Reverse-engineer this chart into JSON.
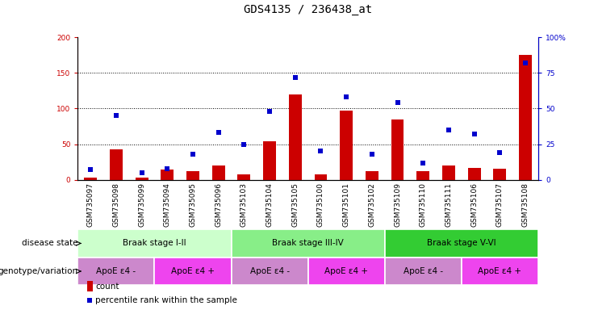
{
  "title": "GDS4135 / 236438_at",
  "samples": [
    "GSM735097",
    "GSM735098",
    "GSM735099",
    "GSM735094",
    "GSM735095",
    "GSM735096",
    "GSM735103",
    "GSM735104",
    "GSM735105",
    "GSM735100",
    "GSM735101",
    "GSM735102",
    "GSM735109",
    "GSM735110",
    "GSM735111",
    "GSM735106",
    "GSM735107",
    "GSM735108"
  ],
  "counts": [
    3,
    43,
    3,
    14,
    12,
    20,
    8,
    54,
    120,
    8,
    97,
    12,
    85,
    12,
    20,
    17,
    15,
    175
  ],
  "percentiles": [
    7,
    45,
    5,
    8,
    18,
    33,
    25,
    48,
    72,
    20,
    58,
    18,
    54,
    12,
    35,
    32,
    19,
    82
  ],
  "ylim_left": [
    0,
    200
  ],
  "ylim_right": [
    0,
    100
  ],
  "yticks_left": [
    0,
    50,
    100,
    150,
    200
  ],
  "yticks_right": [
    0,
    25,
    50,
    75,
    100
  ],
  "ytick_labels_right": [
    "0",
    "25",
    "50",
    "75",
    "100%"
  ],
  "bar_color": "#cc0000",
  "dot_color": "#0000cc",
  "background_color": "#ffffff",
  "disease_state_row": {
    "label": "disease state",
    "groups": [
      {
        "name": "Braak stage I-II",
        "start": 0,
        "end": 6,
        "color": "#ccffcc"
      },
      {
        "name": "Braak stage III-IV",
        "start": 6,
        "end": 12,
        "color": "#88ee88"
      },
      {
        "name": "Braak stage V-VI",
        "start": 12,
        "end": 18,
        "color": "#33cc33"
      }
    ]
  },
  "genotype_row": {
    "label": "genotype/variation",
    "groups": [
      {
        "name": "ApoE ε4 -",
        "start": 0,
        "end": 3,
        "color": "#cc88cc"
      },
      {
        "name": "ApoE ε4 +",
        "start": 3,
        "end": 6,
        "color": "#ee44ee"
      },
      {
        "name": "ApoE ε4 -",
        "start": 6,
        "end": 9,
        "color": "#cc88cc"
      },
      {
        "name": "ApoE ε4 +",
        "start": 9,
        "end": 12,
        "color": "#ee44ee"
      },
      {
        "name": "ApoE ε4 -",
        "start": 12,
        "end": 15,
        "color": "#cc88cc"
      },
      {
        "name": "ApoE ε4 +",
        "start": 15,
        "end": 18,
        "color": "#ee44ee"
      }
    ]
  },
  "legend_count_color": "#cc0000",
  "legend_percentile_color": "#0000cc",
  "title_fontsize": 10,
  "tick_fontsize": 6.5,
  "label_fontsize": 7.5,
  "annot_fontsize": 7.5
}
